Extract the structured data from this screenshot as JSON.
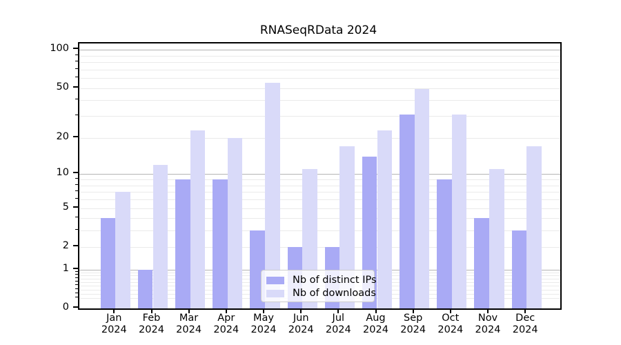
{
  "title": "RNASeqRData 2024",
  "chart_data": {
    "type": "bar",
    "title": "RNASeqRData 2024",
    "year": "2024",
    "categories": [
      "Jan",
      "Feb",
      "Mar",
      "Apr",
      "May",
      "Jun",
      "Jul",
      "Aug",
      "Sep",
      "Oct",
      "Nov",
      "Dec"
    ],
    "series": [
      {
        "name": "Nb of distinct IPs",
        "color": "#a9aaf5",
        "values": [
          4,
          1,
          9,
          9,
          3,
          2,
          2,
          14,
          31,
          9,
          4,
          3
        ]
      },
      {
        "name": "Nb of downloads",
        "color": "#d9daf9",
        "values": [
          7,
          12,
          23,
          20,
          55,
          11,
          17,
          23,
          49,
          31,
          11,
          17
        ]
      }
    ],
    "xlabel": "",
    "ylabel": "",
    "y_axis": {
      "scale": "log1p",
      "tick_values": [
        0,
        1,
        2,
        5,
        10,
        20,
        50,
        100
      ],
      "tick_labels": [
        "0",
        "1",
        "2",
        "5",
        "10",
        "20",
        "50",
        "100"
      ],
      "range_max": 112,
      "major_gridlines": [
        1,
        10,
        100
      ],
      "minor_gridlines": [
        0.2,
        0.3,
        0.4,
        0.5,
        0.6,
        0.7,
        0.8,
        0.9,
        2,
        3,
        4,
        5,
        6,
        7,
        8,
        9,
        20,
        30,
        40,
        50,
        60,
        70,
        80,
        90
      ]
    },
    "grid": true,
    "legend_position": "lower center"
  },
  "colors": {
    "major_grid": "#b3b3b3",
    "minor_grid": "#eaeaea",
    "axis": "#000000",
    "text": "#000000",
    "legend_border": "#cccccc"
  }
}
